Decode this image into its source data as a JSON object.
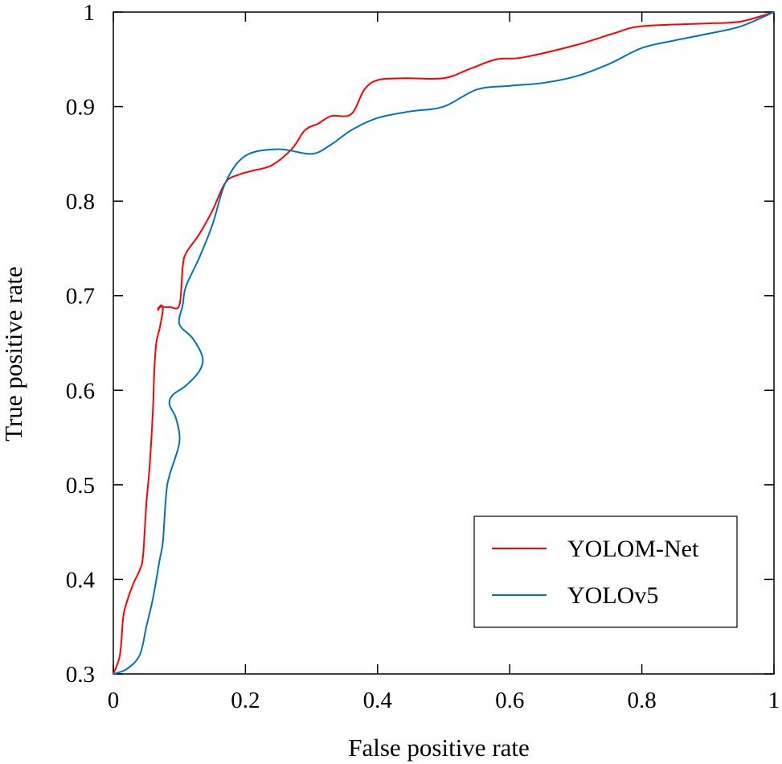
{
  "chart_data": {
    "type": "line",
    "title": "",
    "xlabel": "False positive rate",
    "ylabel": "True positive rate",
    "xlim": [
      0,
      1
    ],
    "ylim": [
      0.3,
      1
    ],
    "x_ticks": [
      {
        "value": 0,
        "label": "0"
      },
      {
        "value": 0.2,
        "label": "0.2"
      },
      {
        "value": 0.4,
        "label": "0.4"
      },
      {
        "value": 0.6,
        "label": "0.6"
      },
      {
        "value": 0.8,
        "label": "0.8"
      },
      {
        "value": 1,
        "label": "1"
      }
    ],
    "y_ticks": [
      {
        "value": 0.3,
        "label": "0.3"
      },
      {
        "value": 0.4,
        "label": "0.4"
      },
      {
        "value": 0.5,
        "label": "0.5"
      },
      {
        "value": 0.6,
        "label": "0.6"
      },
      {
        "value": 0.7,
        "label": "0.7"
      },
      {
        "value": 0.8,
        "label": "0.8"
      },
      {
        "value": 0.9,
        "label": "0.9"
      },
      {
        "value": 1,
        "label": "1"
      }
    ],
    "grid": false,
    "legend_position": "bottom-right",
    "series": [
      {
        "name": "YOLOM-Net",
        "color": "#ff0000",
        "x": [
          0,
          0.01,
          0.015,
          0.02,
          0.03,
          0.04,
          0.045,
          0.05,
          0.055,
          0.06,
          0.062,
          0.065,
          0.07,
          0.075,
          0.072,
          0.068,
          0.07,
          0.085,
          0.1,
          0.105,
          0.11,
          0.13,
          0.15,
          0.17,
          0.19,
          0.21,
          0.24,
          0.27,
          0.29,
          0.31,
          0.33,
          0.36,
          0.38,
          0.4,
          0.44,
          0.5,
          0.54,
          0.58,
          0.62,
          0.7,
          0.76,
          0.8,
          0.9,
          0.95,
          1.0
        ],
        "y": [
          0.3,
          0.32,
          0.36,
          0.375,
          0.395,
          0.41,
          0.425,
          0.48,
          0.52,
          0.58,
          0.62,
          0.65,
          0.665,
          0.685,
          0.69,
          0.685,
          0.688,
          0.688,
          0.69,
          0.73,
          0.745,
          0.765,
          0.79,
          0.82,
          0.828,
          0.832,
          0.838,
          0.855,
          0.875,
          0.882,
          0.89,
          0.892,
          0.918,
          0.928,
          0.93,
          0.93,
          0.94,
          0.95,
          0.952,
          0.965,
          0.978,
          0.985,
          0.988,
          0.99,
          1.0
        ]
      },
      {
        "name": "YOLOv5",
        "color": "#0072bd",
        "x": [
          0,
          0.02,
          0.04,
          0.05,
          0.06,
          0.07,
          0.075,
          0.08,
          0.085,
          0.1,
          0.095,
          0.085,
          0.09,
          0.11,
          0.13,
          0.135,
          0.12,
          0.1,
          0.105,
          0.11,
          0.13,
          0.15,
          0.17,
          0.2,
          0.25,
          0.3,
          0.33,
          0.36,
          0.4,
          0.45,
          0.5,
          0.55,
          0.6,
          0.65,
          0.7,
          0.75,
          0.8,
          0.85,
          0.9,
          0.95,
          1.0
        ],
        "y": [
          0.3,
          0.305,
          0.32,
          0.35,
          0.38,
          0.42,
          0.44,
          0.49,
          0.51,
          0.545,
          0.57,
          0.585,
          0.595,
          0.605,
          0.62,
          0.635,
          0.655,
          0.67,
          0.69,
          0.71,
          0.74,
          0.775,
          0.82,
          0.848,
          0.855,
          0.85,
          0.86,
          0.875,
          0.888,
          0.895,
          0.9,
          0.918,
          0.922,
          0.925,
          0.932,
          0.945,
          0.962,
          0.97,
          0.977,
          0.985,
          1.0
        ]
      }
    ]
  }
}
